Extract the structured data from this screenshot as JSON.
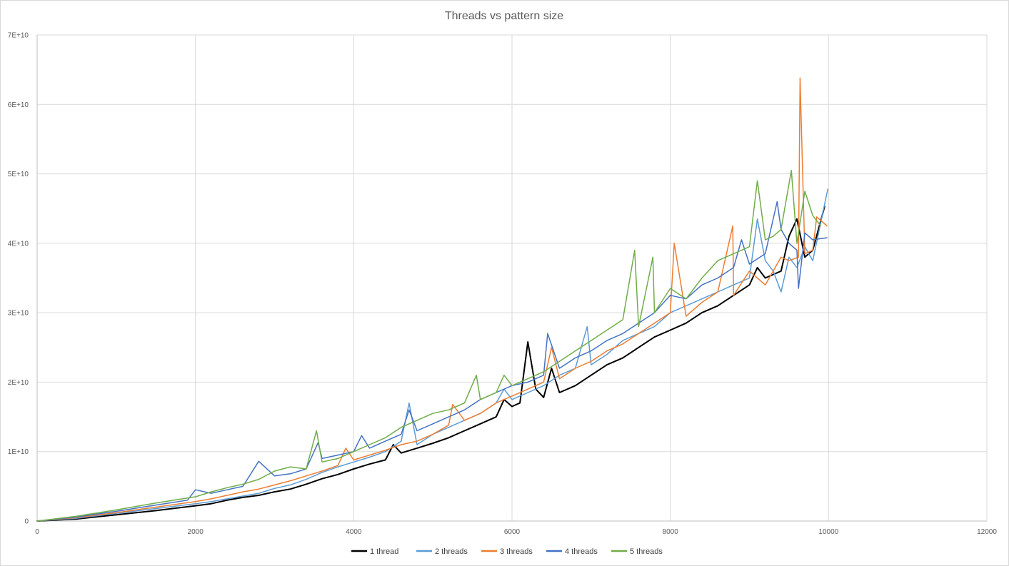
{
  "chart_data": {
    "type": "line",
    "title": "Threads vs pattern size",
    "xlabel": "",
    "ylabel": "",
    "xlim": [
      0,
      12000
    ],
    "ylim": [
      0,
      70000000000
    ],
    "x_ticks": [
      0,
      2000,
      4000,
      6000,
      8000,
      10000,
      12000
    ],
    "x_tick_labels": [
      "0",
      "2000",
      "4000",
      "6000",
      "8000",
      "10000",
      "12000"
    ],
    "y_ticks": [
      0,
      10000000000,
      20000000000,
      30000000000,
      40000000000,
      50000000000,
      60000000000,
      70000000000
    ],
    "y_tick_labels": [
      "0",
      "1E+10",
      "2E+10",
      "3E+10",
      "4E+10",
      "5E+10",
      "6E+10",
      "7E+10"
    ],
    "grid": true,
    "legend_position": "bottom",
    "series": [
      {
        "name": "1 thread",
        "color": "#000000",
        "width": 2,
        "x": [
          0,
          500,
          1000,
          1500,
          2000,
          2200,
          2400,
          2600,
          2800,
          3000,
          3200,
          3400,
          3600,
          3800,
          4000,
          4200,
          4400,
          4500,
          4600,
          4800,
          5000,
          5200,
          5400,
          5600,
          5800,
          5900,
          6000,
          6100,
          6200,
          6300,
          6400,
          6500,
          6600,
          6800,
          7000,
          7200,
          7400,
          7600,
          7800,
          8000,
          8200,
          8400,
          8600,
          8800,
          9000,
          9100,
          9200,
          9400,
          9500,
          9600,
          9700,
          9800,
          9950
        ],
        "values": [
          0,
          300000000,
          900000000,
          1500000000,
          2200000000,
          2500000000,
          3000000000,
          3400000000,
          3700000000,
          4200000000,
          4600000000,
          5300000000,
          6100000000,
          6700000000,
          7500000000,
          8200000000,
          8800000000,
          11000000000,
          9800000000,
          10500000000,
          11200000000,
          12000000000,
          13000000000,
          14000000000,
          15000000000,
          17500000000,
          16500000000,
          17000000000,
          25800000000,
          19000000000,
          17800000000,
          22000000000,
          18500000000,
          19500000000,
          21000000000,
          22500000000,
          23500000000,
          25000000000,
          26500000000,
          27500000000,
          28500000000,
          30000000000,
          31000000000,
          32500000000,
          34000000000,
          36500000000,
          35000000000,
          36000000000,
          41000000000,
          43500000000,
          38000000000,
          39000000000,
          45300000000
        ]
      },
      {
        "name": "2 threads",
        "color": "#5b9bd5",
        "width": 1.5,
        "x": [
          0,
          500,
          1000,
          1500,
          2000,
          2200,
          2400,
          2600,
          2800,
          3000,
          3200,
          3400,
          3600,
          3800,
          4000,
          4200,
          4400,
          4600,
          4700,
          4800,
          5000,
          5200,
          5400,
          5600,
          5800,
          5900,
          6000,
          6200,
          6400,
          6600,
          6800,
          6950,
          7000,
          7200,
          7400,
          7600,
          7800,
          8000,
          8200,
          8400,
          8600,
          8800,
          9000,
          9100,
          9200,
          9300,
          9400,
          9500,
          9600,
          9700,
          9800,
          9990
        ],
        "values": [
          0,
          400000000,
          1100000000,
          1800000000,
          2500000000,
          2800000000,
          3200000000,
          3600000000,
          4000000000,
          4700000000,
          5200000000,
          6000000000,
          7000000000,
          7800000000,
          8500000000,
          9200000000,
          10000000000,
          11500000000,
          17000000000,
          11000000000,
          12500000000,
          13500000000,
          14500000000,
          15500000000,
          17000000000,
          19000000000,
          17500000000,
          18500000000,
          19500000000,
          21000000000,
          22000000000,
          28000000000,
          22500000000,
          24000000000,
          26000000000,
          27000000000,
          28000000000,
          30000000000,
          31000000000,
          32000000000,
          33000000000,
          34000000000,
          35000000000,
          43500000000,
          37500000000,
          36000000000,
          33000000000,
          38000000000,
          36500000000,
          39500000000,
          37500000000,
          47800000000
        ]
      },
      {
        "name": "3 threads",
        "color": "#ed7d31",
        "width": 1.5,
        "x": [
          0,
          500,
          1000,
          1500,
          2000,
          2200,
          2400,
          2600,
          2800,
          3000,
          3200,
          3400,
          3600,
          3800,
          3900,
          4000,
          4200,
          4400,
          4600,
          4800,
          5000,
          5200,
          5250,
          5400,
          5600,
          5800,
          6000,
          6200,
          6400,
          6500,
          6600,
          6800,
          7000,
          7200,
          7400,
          7600,
          7800,
          8000,
          8050,
          8200,
          8400,
          8600,
          8790,
          8800,
          9000,
          9200,
          9400,
          9500,
          9620,
          9640,
          9700,
          9800,
          9850,
          9980
        ],
        "values": [
          0,
          500000000,
          1200000000,
          2000000000,
          2800000000,
          3200000000,
          3700000000,
          4200000000,
          4600000000,
          5200000000,
          5800000000,
          6500000000,
          7200000000,
          8000000000,
          10500000000,
          8800000000,
          9500000000,
          10200000000,
          11000000000,
          11500000000,
          12500000000,
          13800000000,
          16800000000,
          14500000000,
          15500000000,
          17000000000,
          18000000000,
          19000000000,
          20000000000,
          25000000000,
          20500000000,
          22000000000,
          23000000000,
          24500000000,
          25500000000,
          27000000000,
          28500000000,
          30000000000,
          40000000000,
          29500000000,
          31500000000,
          33000000000,
          42500000000,
          32500000000,
          36000000000,
          34000000000,
          38000000000,
          37500000000,
          38000000000,
          63800000000,
          38500000000,
          39000000000,
          43800000000,
          42500000000
        ]
      },
      {
        "name": "4 threads",
        "color": "#4472c4",
        "width": 1.5,
        "x": [
          0,
          500,
          1000,
          1500,
          1900,
          2000,
          2200,
          2400,
          2600,
          2800,
          3000,
          3200,
          3400,
          3550,
          3600,
          3800,
          4000,
          4100,
          4200,
          4400,
          4600,
          4700,
          4800,
          5000,
          5200,
          5400,
          5600,
          5800,
          6000,
          6200,
          6400,
          6450,
          6600,
          6800,
          7000,
          7200,
          7400,
          7600,
          7800,
          8000,
          8200,
          8400,
          8600,
          8800,
          8900,
          9000,
          9200,
          9350,
          9400,
          9500,
          9600,
          9620,
          9700,
          9800,
          9980
        ],
        "values": [
          0,
          600000000,
          1400000000,
          2300000000,
          3000000000,
          4500000000,
          4000000000,
          4500000000,
          5000000000,
          8600000000,
          6500000000,
          6800000000,
          7500000000,
          11300000000,
          9000000000,
          9500000000,
          10000000000,
          12300000000,
          10500000000,
          11500000000,
          12500000000,
          16000000000,
          13000000000,
          14000000000,
          15000000000,
          16000000000,
          17500000000,
          18500000000,
          19500000000,
          20000000000,
          21000000000,
          27000000000,
          22000000000,
          23500000000,
          24500000000,
          26000000000,
          27000000000,
          28500000000,
          30000000000,
          32500000000,
          32000000000,
          34000000000,
          35000000000,
          36500000000,
          40500000000,
          37000000000,
          38500000000,
          46000000000,
          42000000000,
          40000000000,
          39000000000,
          33500000000,
          41500000000,
          40500000000,
          40800000000
        ]
      },
      {
        "name": "5 threads",
        "color": "#70ad47",
        "width": 1.5,
        "x": [
          0,
          500,
          1000,
          1500,
          2000,
          2200,
          2400,
          2600,
          2800,
          3000,
          3200,
          3400,
          3530,
          3600,
          3800,
          4000,
          4200,
          4400,
          4600,
          4800,
          5000,
          5200,
          5400,
          5550,
          5600,
          5800,
          5900,
          6000,
          6200,
          6400,
          6600,
          6800,
          7000,
          7200,
          7400,
          7550,
          7600,
          7780,
          7800,
          8000,
          8200,
          8400,
          8600,
          8800,
          9000,
          9100,
          9200,
          9300,
          9400,
          9530,
          9600,
          9700,
          9800,
          9900
        ],
        "values": [
          0,
          700000000,
          1600000000,
          2600000000,
          3500000000,
          4200000000,
          4800000000,
          5300000000,
          6000000000,
          7200000000,
          7800000000,
          7500000000,
          13000000000,
          8500000000,
          9000000000,
          10000000000,
          11000000000,
          12000000000,
          13500000000,
          14500000000,
          15500000000,
          16000000000,
          17000000000,
          21000000000,
          17500000000,
          18500000000,
          21000000000,
          19500000000,
          20500000000,
          21500000000,
          23000000000,
          24500000000,
          26000000000,
          27500000000,
          29000000000,
          39000000000,
          28000000000,
          38000000000,
          30000000000,
          33500000000,
          32000000000,
          35000000000,
          37500000000,
          38500000000,
          39500000000,
          49000000000,
          40500000000,
          41000000000,
          42000000000,
          50500000000,
          40000000000,
          47500000000,
          44000000000,
          42500000000
        ]
      }
    ]
  }
}
